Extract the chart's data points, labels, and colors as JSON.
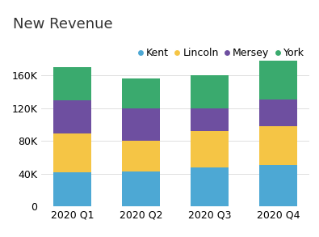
{
  "title": "New Revenue",
  "categories": [
    "2020 Q1",
    "2020 Q2",
    "2020 Q3",
    "2020 Q4"
  ],
  "series": {
    "Kent": [
      42000,
      43000,
      47000,
      50000
    ],
    "Lincoln": [
      47000,
      37000,
      45000,
      48000
    ],
    "Mersey": [
      41000,
      40000,
      28000,
      33000
    ],
    "York": [
      40000,
      36000,
      40000,
      47000
    ]
  },
  "colors": {
    "Kent": "#4da8d4",
    "Lincoln": "#f5c545",
    "Mersey": "#6e4fa0",
    "York": "#3aaa6e"
  },
  "title_fontsize": 13,
  "tick_fontsize": 9,
  "legend_fontsize": 9,
  "bar_width": 0.55,
  "background_color": "#ffffff",
  "ylim": [
    0,
    180000
  ],
  "ytick_values": [
    0,
    40000,
    80000,
    120000,
    160000
  ]
}
